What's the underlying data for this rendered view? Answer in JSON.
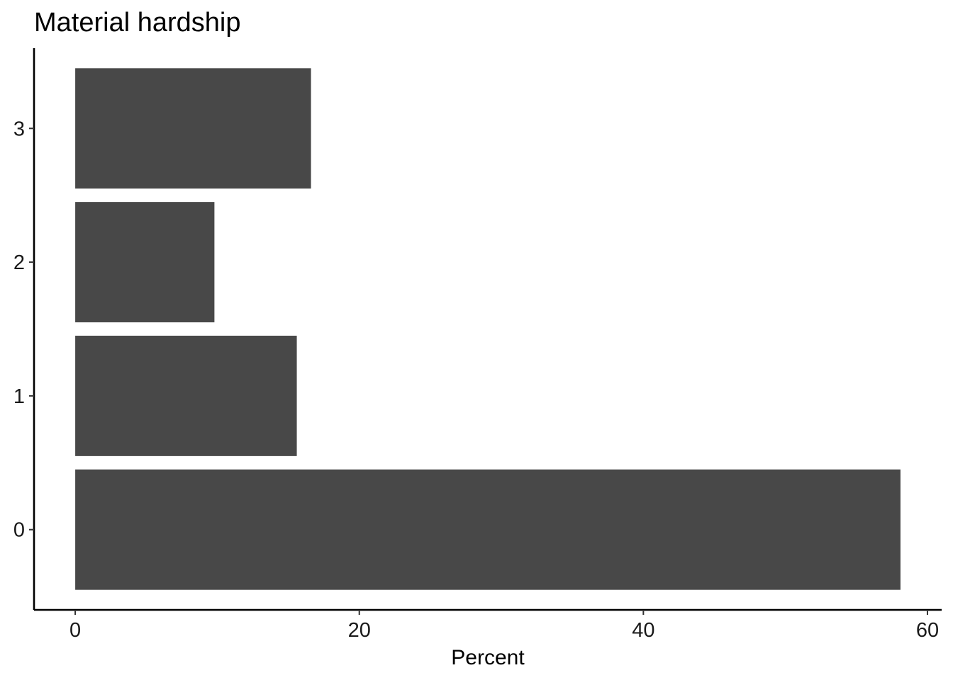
{
  "chart_data": {
    "type": "bar",
    "orientation": "horizontal",
    "title": "Material hardship",
    "xlabel": "Percent",
    "ylabel": "",
    "categories": [
      "0",
      "1",
      "2",
      "3"
    ],
    "values": [
      58.1,
      15.6,
      9.8,
      16.6
    ],
    "xlim": [
      -2.9,
      61
    ],
    "x_ticks": [
      0,
      20,
      40,
      60
    ],
    "bar_color": "#484848",
    "grid": false,
    "legend": "none"
  }
}
